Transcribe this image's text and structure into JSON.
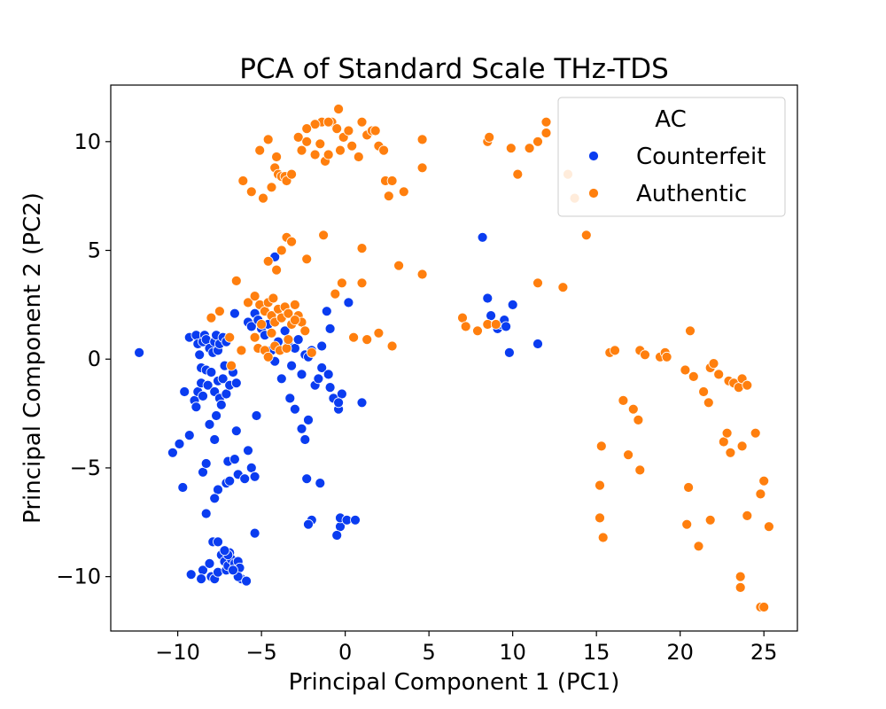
{
  "chart_data": {
    "type": "scatter",
    "title": "PCA of Standard Scale THz-TDS",
    "xlabel": "Principal Component 1 (PC1)",
    "ylabel": "Principal Component 2 (PC2)",
    "xlim": [
      -14,
      27
    ],
    "ylim": [
      -12.5,
      12.6
    ],
    "xticks": [
      -10,
      -5,
      0,
      5,
      10,
      15,
      20,
      25
    ],
    "yticks": [
      -10,
      -5,
      0,
      5,
      10
    ],
    "xtick_labels": [
      "−10",
      "−5",
      "0",
      "5",
      "10",
      "15",
      "20",
      "25"
    ],
    "ytick_labels": [
      "−10",
      "−5",
      "0",
      "5",
      "10"
    ],
    "grid": false,
    "legend": {
      "title": "AC",
      "placement": "top-right"
    },
    "series": [
      {
        "name": "Counterfeit",
        "color": "#0a3cf0",
        "points": [
          [
            -12.3,
            0.3
          ],
          [
            -10.3,
            -4.3
          ],
          [
            -9.9,
            -3.9
          ],
          [
            -9.7,
            -5.9
          ],
          [
            -9.6,
            -1.5
          ],
          [
            -9.3,
            -3.5
          ],
          [
            -9.2,
            -9.9
          ],
          [
            -9.3,
            1.0
          ],
          [
            -8.9,
            1.1
          ],
          [
            -8.8,
            0.7
          ],
          [
            -8.7,
            0.2
          ],
          [
            -8.6,
            -0.4
          ],
          [
            -8.5,
            0.8
          ],
          [
            -8.4,
            1.1
          ],
          [
            -8.3,
            0.9
          ],
          [
            -8.1,
            0.5
          ],
          [
            -7.9,
            0.3
          ],
          [
            -7.8,
            0.8
          ],
          [
            -7.7,
            1.1
          ],
          [
            -7.6,
            0.4
          ],
          [
            -7.5,
            0.7
          ],
          [
            -7.3,
            1.0
          ],
          [
            -7.1,
            0.8
          ],
          [
            -9.0,
            -1.9
          ],
          [
            -8.9,
            -2.2
          ],
          [
            -8.8,
            -1.5
          ],
          [
            -8.6,
            -1.1
          ],
          [
            -8.5,
            -1.7
          ],
          [
            -8.3,
            -0.5
          ],
          [
            -8.2,
            -1.2
          ],
          [
            -8.0,
            -0.6
          ],
          [
            -7.8,
            -1.5
          ],
          [
            -7.6,
            -1.0
          ],
          [
            -7.5,
            -1.8
          ],
          [
            -7.3,
            -0.9
          ],
          [
            -7.1,
            -1.6
          ],
          [
            -6.9,
            -1.2
          ],
          [
            -6.7,
            -0.6
          ],
          [
            -6.5,
            -1.1
          ],
          [
            -7.2,
            -0.3
          ],
          [
            -7.4,
            -2.1
          ],
          [
            -8.5,
            -5.2
          ],
          [
            -8.3,
            -4.8
          ],
          [
            -8.1,
            -3.0
          ],
          [
            -7.8,
            -3.7
          ],
          [
            -7.7,
            -2.6
          ],
          [
            -7.6,
            -6.0
          ],
          [
            -7.8,
            -6.4
          ],
          [
            -7.1,
            -5.7
          ],
          [
            -7.0,
            -4.7
          ],
          [
            -6.9,
            -5.6
          ],
          [
            -6.6,
            -4.6
          ],
          [
            -6.4,
            -5.3
          ],
          [
            -6.5,
            -3.3
          ],
          [
            -6.0,
            -5.5
          ],
          [
            -5.8,
            -4.2
          ],
          [
            -5.6,
            -5.0
          ],
          [
            -5.4,
            -5.4
          ],
          [
            -5.3,
            -2.6
          ],
          [
            -5.4,
            -8.0
          ],
          [
            -8.3,
            -7.1
          ],
          [
            -7.9,
            -8.4
          ],
          [
            -8.5,
            -9.7
          ],
          [
            -8.6,
            -10.1
          ],
          [
            -8.1,
            -9.4
          ],
          [
            -8.0,
            -10.0
          ],
          [
            -7.8,
            -10.1
          ],
          [
            -7.6,
            -9.8
          ],
          [
            -7.4,
            -9.0
          ],
          [
            -7.2,
            -9.3
          ],
          [
            -7.1,
            -9.7
          ],
          [
            -7.0,
            -9.5
          ],
          [
            -6.9,
            -8.9
          ],
          [
            -6.8,
            -9.2
          ],
          [
            -6.6,
            -9.4
          ],
          [
            -6.5,
            -9.8
          ],
          [
            -6.4,
            -9.3
          ],
          [
            -6.3,
            -9.6
          ],
          [
            -6.2,
            -10.1
          ],
          [
            -6.4,
            -10.0
          ],
          [
            -6.7,
            -9.7
          ],
          [
            -7.0,
            -9.0
          ],
          [
            -7.2,
            -8.8
          ],
          [
            -5.9,
            -10.2
          ],
          [
            -7.6,
            -8.4
          ],
          [
            -6.6,
            2.1
          ],
          [
            -5.8,
            1.7
          ],
          [
            -5.6,
            1.5
          ],
          [
            -5.4,
            2.1
          ],
          [
            -5.2,
            1.8
          ],
          [
            -5.0,
            1.4
          ],
          [
            -4.8,
            1.1
          ],
          [
            -4.6,
            1.6
          ],
          [
            -4.4,
            0.4
          ],
          [
            -4.2,
            -0.1
          ],
          [
            -4.0,
            0.8
          ],
          [
            -3.8,
            -0.9
          ],
          [
            -3.6,
            1.3
          ],
          [
            -3.4,
            0.8
          ],
          [
            -3.2,
            -0.3
          ],
          [
            -3.0,
            0.5
          ],
          [
            -2.8,
            0.9
          ],
          [
            -2.6,
            -0.7
          ],
          [
            -2.4,
            0.2
          ],
          [
            -2.2,
            0.1
          ],
          [
            -2.0,
            0.4
          ],
          [
            -1.8,
            -1.2
          ],
          [
            -1.6,
            -0.9
          ],
          [
            -1.4,
            -0.4
          ],
          [
            -1.0,
            -0.7
          ],
          [
            -0.9,
            -1.3
          ],
          [
            -0.7,
            -1.8
          ],
          [
            -0.4,
            -2.3
          ],
          [
            -0.2,
            -1.6
          ],
          [
            1.0,
            -2.0
          ],
          [
            -0.9,
            1.4
          ],
          [
            -0.4,
            -2.0
          ],
          [
            -3.3,
            -1.8
          ],
          [
            -3.0,
            -2.3
          ],
          [
            -2.6,
            -3.2
          ],
          [
            -2.4,
            -3.7
          ],
          [
            -2.2,
            -2.8
          ],
          [
            -2.3,
            -5.5
          ],
          [
            -1.5,
            -5.7
          ],
          [
            -2.0,
            -7.4
          ],
          [
            -2.2,
            -7.6
          ],
          [
            -0.3,
            -7.7
          ],
          [
            -0.5,
            -8.1
          ],
          [
            -0.3,
            -7.3
          ],
          [
            0.1,
            -7.4
          ],
          [
            0.6,
            -7.4
          ],
          [
            -1.4,
            0.6
          ],
          [
            0.2,
            2.6
          ],
          [
            -4.2,
            4.7
          ],
          [
            -1.1,
            2.2
          ],
          [
            8.2,
            5.6
          ],
          [
            8.5,
            2.8
          ],
          [
            8.7,
            2.0
          ],
          [
            9.1,
            1.4
          ],
          [
            9.3,
            1.6
          ],
          [
            9.5,
            1.8
          ],
          [
            9.6,
            1.5
          ],
          [
            9.8,
            0.3
          ],
          [
            10.0,
            2.5
          ],
          [
            11.5,
            0.7
          ]
        ]
      },
      {
        "name": "Authentic",
        "color": "#ff7f0e",
        "points": [
          [
            -6.1,
            8.2
          ],
          [
            -5.6,
            7.7
          ],
          [
            -5.1,
            9.6
          ],
          [
            -4.9,
            7.4
          ],
          [
            -4.6,
            10.1
          ],
          [
            -4.4,
            7.9
          ],
          [
            -4.2,
            8.8
          ],
          [
            -4.1,
            9.3
          ],
          [
            -4.0,
            8.5
          ],
          [
            -3.8,
            8.4
          ],
          [
            -3.6,
            8.4
          ],
          [
            -3.5,
            8.2
          ],
          [
            -3.2,
            8.5
          ],
          [
            -2.8,
            10.2
          ],
          [
            -2.6,
            9.6
          ],
          [
            -2.3,
            10.0
          ],
          [
            -1.8,
            9.4
          ],
          [
            -1.5,
            9.9
          ],
          [
            -1.2,
            9.1
          ],
          [
            -1.0,
            9.4
          ],
          [
            -0.8,
            10.9
          ],
          [
            -0.5,
            10.6
          ],
          [
            -0.3,
            9.6
          ],
          [
            -0.1,
            10.2
          ],
          [
            0.2,
            10.5
          ],
          [
            0.4,
            9.8
          ],
          [
            0.8,
            9.3
          ],
          [
            1.0,
            10.9
          ],
          [
            1.3,
            10.3
          ],
          [
            1.6,
            10.5
          ],
          [
            2.0,
            9.8
          ],
          [
            2.3,
            9.6
          ],
          [
            2.4,
            8.2
          ],
          [
            2.6,
            7.5
          ],
          [
            2.8,
            8.2
          ],
          [
            3.5,
            7.7
          ],
          [
            4.6,
            10.1
          ],
          [
            4.6,
            8.8
          ],
          [
            -1.4,
            10.9
          ],
          [
            -1.8,
            10.8
          ],
          [
            -0.4,
            11.5
          ],
          [
            -2.3,
            10.6
          ],
          [
            -1.0,
            10.9
          ],
          [
            1.8,
            10.5
          ],
          [
            -6.5,
            3.6
          ],
          [
            -4.6,
            4.5
          ],
          [
            -4.1,
            4.1
          ],
          [
            -3.8,
            5.0
          ],
          [
            -3.5,
            5.6
          ],
          [
            -3.2,
            5.4
          ],
          [
            -2.3,
            4.6
          ],
          [
            -1.3,
            5.7
          ],
          [
            -0.6,
            3.0
          ],
          [
            -0.2,
            3.5
          ],
          [
            1.0,
            3.5
          ],
          [
            1.0,
            5.1
          ],
          [
            3.2,
            4.3
          ],
          [
            4.6,
            3.9
          ],
          [
            2.0,
            1.2
          ],
          [
            1.3,
            0.9
          ],
          [
            2.8,
            0.6
          ],
          [
            -5.8,
            2.6
          ],
          [
            -5.4,
            2.9
          ],
          [
            -5.1,
            2.5
          ],
          [
            -4.8,
            2.2
          ],
          [
            -4.6,
            2.6
          ],
          [
            -4.4,
            2.0
          ],
          [
            -4.2,
            1.7
          ],
          [
            -4.0,
            2.3
          ],
          [
            -3.8,
            1.9
          ],
          [
            -3.6,
            2.4
          ],
          [
            -3.4,
            2.1
          ],
          [
            -3.2,
            1.6
          ],
          [
            -3.0,
            2.5
          ],
          [
            -2.8,
            2.0
          ],
          [
            -2.6,
            1.7
          ],
          [
            -2.4,
            1.3
          ],
          [
            -5.4,
            1.0
          ],
          [
            -5.2,
            0.5
          ],
          [
            -4.8,
            0.4
          ],
          [
            -4.6,
            0.1
          ],
          [
            -4.4,
            1.2
          ],
          [
            -4.2,
            0.6
          ],
          [
            -3.9,
            0.4
          ],
          [
            -3.5,
            0.5
          ],
          [
            -6.2,
            0.4
          ],
          [
            -6.8,
            -0.3
          ],
          [
            -7.5,
            2.2
          ],
          [
            -8.0,
            1.9
          ],
          [
            -6.9,
            1.0
          ],
          [
            -5.0,
            1.6
          ],
          [
            -3.0,
            1.8
          ],
          [
            -4.3,
            2.8
          ],
          [
            -3.4,
            0.9
          ],
          [
            -2.0,
            0.3
          ],
          [
            0.5,
            1.0
          ],
          [
            7.0,
            1.9
          ],
          [
            7.2,
            1.5
          ],
          [
            7.9,
            1.3
          ],
          [
            8.5,
            1.6
          ],
          [
            9.0,
            1.6
          ],
          [
            8.5,
            10.0
          ],
          [
            8.6,
            10.2
          ],
          [
            9.9,
            9.7
          ],
          [
            10.3,
            8.5
          ],
          [
            11.0,
            9.7
          ],
          [
            11.5,
            10.0
          ],
          [
            12.0,
            10.9
          ],
          [
            12.0,
            10.4
          ],
          [
            13.3,
            8.5
          ],
          [
            13.7,
            7.4
          ],
          [
            14.4,
            5.7
          ],
          [
            11.5,
            3.5
          ],
          [
            13.0,
            3.3
          ],
          [
            15.8,
            0.3
          ],
          [
            16.1,
            0.4
          ],
          [
            17.6,
            0.4
          ],
          [
            17.9,
            0.2
          ],
          [
            18.8,
            0.1
          ],
          [
            19.1,
            0.3
          ],
          [
            19.2,
            0.1
          ],
          [
            20.6,
            1.3
          ],
          [
            20.3,
            -0.5
          ],
          [
            20.8,
            -0.8
          ],
          [
            21.4,
            -1.5
          ],
          [
            21.8,
            -0.4
          ],
          [
            22.0,
            -0.2
          ],
          [
            22.3,
            -0.7
          ],
          [
            22.9,
            -1.0
          ],
          [
            23.2,
            -1.1
          ],
          [
            23.5,
            -1.3
          ],
          [
            23.7,
            -0.9
          ],
          [
            24.0,
            -1.2
          ],
          [
            21.7,
            -2.0
          ],
          [
            22.6,
            -3.8
          ],
          [
            22.8,
            -3.4
          ],
          [
            23.0,
            -4.3
          ],
          [
            23.7,
            -4.0
          ],
          [
            24.5,
            -3.4
          ],
          [
            24.8,
            -6.2
          ],
          [
            25.0,
            -5.6
          ],
          [
            24.0,
            -7.2
          ],
          [
            25.3,
            -7.7
          ],
          [
            23.6,
            -10.0
          ],
          [
            23.6,
            -10.5
          ],
          [
            24.8,
            -11.4
          ],
          [
            25.0,
            -11.4
          ],
          [
            16.6,
            -1.9
          ],
          [
            17.2,
            -2.3
          ],
          [
            17.5,
            -2.8
          ],
          [
            16.9,
            -4.4
          ],
          [
            17.6,
            -5.1
          ],
          [
            15.3,
            -4.0
          ],
          [
            15.2,
            -5.8
          ],
          [
            15.2,
            -7.3
          ],
          [
            15.4,
            -8.2
          ],
          [
            20.5,
            -5.9
          ],
          [
            20.4,
            -7.6
          ],
          [
            21.8,
            -7.4
          ],
          [
            21.1,
            -8.6
          ]
        ]
      }
    ]
  }
}
